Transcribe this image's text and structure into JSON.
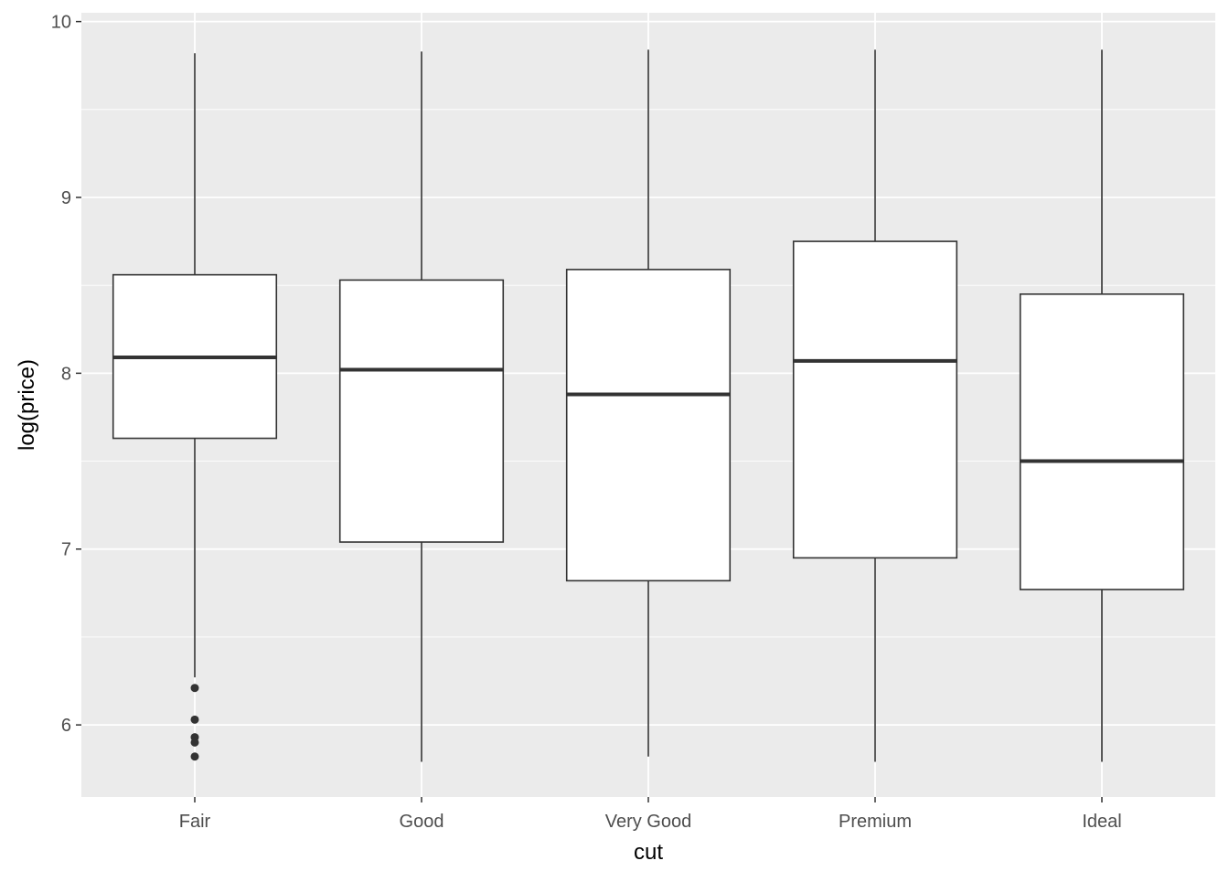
{
  "chart_data": {
    "type": "boxplot",
    "xlabel": "cut",
    "ylabel": "log(price)",
    "categories": [
      "Fair",
      "Good",
      "Very Good",
      "Premium",
      "Ideal"
    ],
    "ylim": [
      5.59,
      10.05
    ],
    "yticks": [
      6,
      7,
      8,
      9,
      10
    ],
    "grid": true,
    "colors": {
      "panel": "#EBEBEB",
      "grid": "#FFFFFF",
      "box_fill": "#FFFFFF",
      "line": "#333333"
    },
    "boxes": [
      {
        "category": "Fair",
        "lower_whisker": 6.27,
        "q1": 7.63,
        "median": 8.09,
        "q3": 8.56,
        "upper_whisker": 9.82,
        "outliers": [
          6.21,
          6.03,
          5.93,
          5.9,
          5.82
        ]
      },
      {
        "category": "Good",
        "lower_whisker": 5.79,
        "q1": 7.04,
        "median": 8.02,
        "q3": 8.53,
        "upper_whisker": 9.83,
        "outliers": []
      },
      {
        "category": "Very Good",
        "lower_whisker": 5.82,
        "q1": 6.82,
        "median": 7.88,
        "q3": 8.59,
        "upper_whisker": 9.84,
        "outliers": []
      },
      {
        "category": "Premium",
        "lower_whisker": 5.79,
        "q1": 6.95,
        "median": 8.07,
        "q3": 8.75,
        "upper_whisker": 9.84,
        "outliers": []
      },
      {
        "category": "Ideal",
        "lower_whisker": 5.79,
        "q1": 6.77,
        "median": 7.5,
        "q3": 8.45,
        "upper_whisker": 9.84,
        "outliers": []
      }
    ]
  }
}
